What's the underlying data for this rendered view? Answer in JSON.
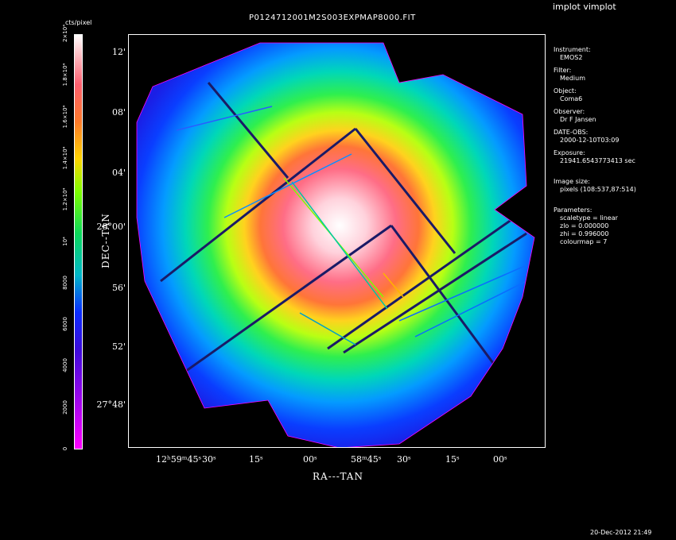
{
  "app": {
    "title": "implot vimplot"
  },
  "image": {
    "title": "P0124712001M2S003EXPMAP8000.FIT"
  },
  "colorbar": {
    "unit_label": "cts/pixel",
    "tick_labels": [
      "0",
      "2000",
      "4000",
      "6000",
      "8000",
      "10⁴",
      "1.2×10⁴",
      "1.4×10⁴",
      "1.6×10⁴",
      "1.8×10⁴",
      "2×10⁴"
    ],
    "max_label": "2×10⁴"
  },
  "axes": {
    "xlabel": "RA---TAN",
    "ylabel": "DEC--TAN",
    "x_ticks": [
      "12ʰ59ᵐ45ˢ",
      "30ˢ",
      "15ˢ",
      "00ˢ",
      "58ᵐ45ˢ",
      "30ˢ",
      "15ˢ",
      "00ˢ"
    ],
    "y_ticks": [
      "12'",
      "08'",
      "04'",
      "28°00'",
      "56'",
      "52'",
      "27°48'"
    ]
  },
  "info": {
    "instrument_label": "Instrument:",
    "instrument": "EMOS2",
    "filter_label": "Filter:",
    "filter": "Medium",
    "object_label": "Object:",
    "object": "Coma6",
    "observer_label": "Observer:",
    "observer": "Dr F Jansen",
    "date_label": "DATE-OBS:",
    "date": "2000-12-10T03:09",
    "exposure_label": "Exposure:",
    "exposure": "21941.6543773413 sec",
    "size_label": "Image size:",
    "size": "pixels (108:537,87:514)",
    "params_label": "Parameters:",
    "scaletype": "scaletype = linear",
    "zlo": "zlo = 0.000000",
    "zhi": "zhi = 0.996000",
    "colourmap": "colourmap =    7"
  },
  "footer": {
    "timestamp": "20-Dec-2012 21:49"
  }
}
